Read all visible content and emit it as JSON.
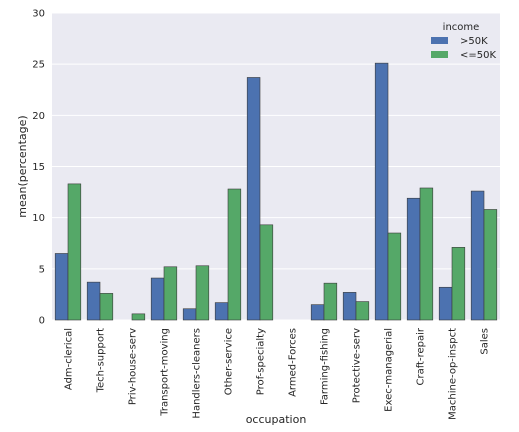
{
  "chart_data": {
    "type": "bar",
    "title": "",
    "xlabel": "occupation",
    "ylabel": "mean(percentage)",
    "ylim": [
      0,
      30
    ],
    "yticks": [
      0,
      5,
      10,
      15,
      20,
      25,
      30
    ],
    "grid": true,
    "legend": {
      "title": "income",
      "placement": "top-right"
    },
    "categories": [
      "Adm-clerical",
      "Tech-support",
      "Priv-house-serv",
      "Transport-moving",
      "Handlers-cleaners",
      "Other-service",
      "Prof-specialty",
      "Armed-Forces",
      "Farming-fishing",
      "Protective-serv",
      "Exec-managerial",
      "Craft-repair",
      "Machine-op-inspct",
      "Sales"
    ],
    "series": [
      {
        "name": ">50K",
        "color": "#4c72b0",
        "values": [
          6.5,
          3.7,
          0.0,
          4.1,
          1.1,
          1.7,
          23.7,
          0.0,
          1.5,
          2.7,
          25.1,
          11.9,
          3.2,
          12.6
        ]
      },
      {
        "name": "<=50K",
        "color": "#55a868",
        "values": [
          13.3,
          2.6,
          0.6,
          5.2,
          5.3,
          12.8,
          9.3,
          0.0,
          3.6,
          1.8,
          8.5,
          12.9,
          7.1,
          10.8
        ]
      }
    ]
  }
}
